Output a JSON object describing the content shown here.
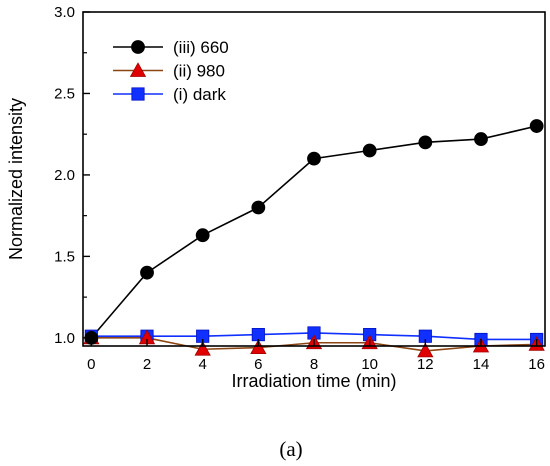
{
  "chart_data": {
    "type": "line",
    "title": "",
    "xlabel": "Irradiation time (min)",
    "ylabel": "Normalized intensity",
    "xlim": [
      -0.3,
      16.3
    ],
    "ylim": [
      0.95,
      3.0
    ],
    "x_ticks": [
      0,
      2,
      4,
      6,
      8,
      10,
      12,
      14,
      16
    ],
    "y_ticks": [
      1.0,
      1.5,
      2.0,
      2.5,
      3.0
    ],
    "y_tick_labels": [
      "1.0",
      "1.5",
      "2.0",
      "2.5",
      "3.0"
    ],
    "grid": false,
    "legend_position": "top-left",
    "caption": "(a)",
    "series": [
      {
        "name": "(iii) 660",
        "marker": "circle",
        "color": "#000000",
        "line_color": "#000000",
        "x": [
          0,
          2,
          4,
          6,
          8,
          10,
          12,
          14,
          16
        ],
        "y": [
          1.0,
          1.4,
          1.63,
          1.8,
          2.1,
          2.15,
          2.2,
          2.22,
          2.3
        ]
      },
      {
        "name": "(ii) 980",
        "marker": "triangle",
        "color": "#e00000",
        "line_color": "#8b4513",
        "x": [
          0,
          2,
          4,
          6,
          8,
          10,
          12,
          14,
          16
        ],
        "y": [
          1.0,
          1.0,
          0.93,
          0.94,
          0.97,
          0.97,
          0.92,
          0.95,
          0.96
        ]
      },
      {
        "name": "(i) dark",
        "marker": "square",
        "color": "#1030ff",
        "line_color": "#1030ff",
        "x": [
          0,
          2,
          4,
          6,
          8,
          10,
          12,
          14,
          16
        ],
        "y": [
          1.01,
          1.01,
          1.01,
          1.02,
          1.03,
          1.02,
          1.01,
          0.99,
          0.99
        ]
      }
    ]
  }
}
